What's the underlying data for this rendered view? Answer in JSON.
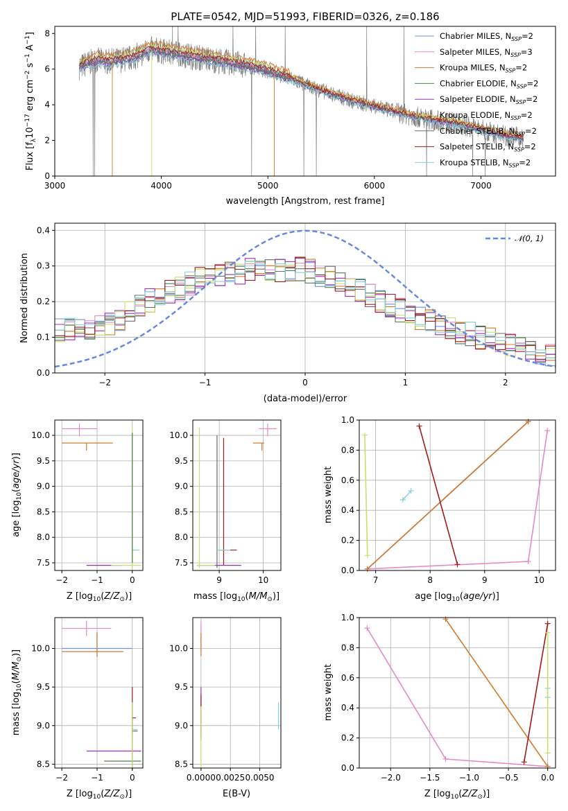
{
  "colors": {
    "chabrier_miles": "#6f8fdf",
    "salpeter_miles": "#e58ac4",
    "kroupa_miles": "#d2782b",
    "chabrier_elodie": "#4d7d4d",
    "salpeter_elodie": "#9c2fc0",
    "kroupa_elodie": "#c8e06a",
    "chabrier_stelib": "#6a6a6a",
    "salpeter_stelib": "#a11a1a",
    "kroupa_stelib": "#85d2d6",
    "gauss": "#6688dd",
    "data": "#808080"
  },
  "series_names": [
    "Chabrier MILES, N_SSP=2",
    "Salpeter MILES, N_SSP=3",
    "Kroupa MILES, N_SSP=2",
    "Chabrier ELODIE, N_SSP=2",
    "Salpeter ELODIE, N_SSP=2",
    "Kroupa ELODIE, N_SSP=2",
    "Chabrier STELIB, N_SSP=2",
    "Salpeter STELIB, N_SSP=2",
    "Kroupa STELIB, N_SSP=2"
  ],
  "legend_a": {
    "entries": [
      {
        "main": "Chabrier MILES, N",
        "sub": "SSP",
        "tail": "=2"
      },
      {
        "main": "Salpeter MILES, N",
        "sub": "SSP",
        "tail": "=3"
      },
      {
        "main": "Kroupa MILES, N",
        "sub": "SSP",
        "tail": "=2"
      },
      {
        "main": "Chabrier ELODIE, N",
        "sub": "SSP",
        "tail": "=2"
      },
      {
        "main": "Salpeter ELODIE, N",
        "sub": "SSP",
        "tail": "=2"
      },
      {
        "main": "Kroupa ELODIE, N",
        "sub": "SSP",
        "tail": "=2"
      },
      {
        "main": "Chabrier STELIB, N",
        "sub": "SSP",
        "tail": "=2"
      },
      {
        "main": "Salpeter STELIB, N",
        "sub": "SSP",
        "tail": "=2"
      },
      {
        "main": "Kroupa STELIB, N",
        "sub": "SSP",
        "tail": "=2"
      }
    ]
  },
  "chart_data": [
    {
      "type": "line",
      "title": "PLATE=0542, MJD=51993, FIBERID=0326, z=0.186",
      "xlabel": "wavelength [Angstrom, rest frame]",
      "ylabel": "Flux [f_λ 10^-17 erg cm^-2 s^-1 A^-1]",
      "xlim": [
        3000,
        7700
      ],
      "ylim": [
        0,
        8.4
      ],
      "xticks": [
        3000,
        4000,
        5000,
        6000,
        7000
      ],
      "yticks": [
        0,
        2,
        4,
        6,
        8
      ],
      "grid": false,
      "legend_position": "upper right",
      "data_color": "#808080",
      "model_envelope": {
        "x": [
          3230,
          3300,
          3400,
          3500,
          3600,
          3700,
          3800,
          3900,
          4000,
          4200,
          4400,
          4600,
          4800,
          5000,
          5200,
          5400,
          5600,
          5800,
          6000,
          6200,
          6400,
          6600,
          6800,
          7000,
          7200,
          7400
        ],
        "y": [
          6.1,
          6.3,
          6.5,
          6.4,
          6.5,
          6.6,
          6.8,
          7.1,
          7.0,
          6.8,
          6.6,
          6.4,
          6.2,
          5.9,
          5.5,
          5.0,
          4.6,
          4.2,
          3.9,
          3.6,
          3.3,
          3.1,
          2.9,
          2.6,
          2.3,
          2.1
        ]
      }
    },
    {
      "type": "line",
      "xlabel": "(data-model)/error",
      "ylabel": "Normed distribution",
      "xlim": [
        -2.5,
        2.5
      ],
      "ylim": [
        0,
        0.42
      ],
      "xticks": [
        -2,
        -1,
        0,
        1,
        2
      ],
      "yticks": [
        0.0,
        0.1,
        0.2,
        0.3,
        0.4
      ],
      "grid": true,
      "legend": "N(0,1)",
      "legend_position": "upper right",
      "histogram_envelope": {
        "x": [
          -2.5,
          -2.0,
          -1.5,
          -1.0,
          -0.5,
          0.0,
          0.5,
          1.0,
          1.5,
          2.0,
          2.5
        ],
        "y": [
          0.12,
          0.13,
          0.21,
          0.27,
          0.29,
          0.29,
          0.24,
          0.17,
          0.12,
          0.08,
          0.05
        ]
      }
    },
    {
      "type": "scatter",
      "xlabel": "Z [log10(Z/Z☉)]",
      "ylabel": "age [log10(age/yr)]",
      "xlim": [
        -2.2,
        0.3
      ],
      "ylim": [
        7.35,
        10.3
      ],
      "xticks": [
        -2,
        -1,
        0
      ],
      "yticks": [
        7.5,
        8.0,
        8.5,
        9.0,
        9.5,
        10.0
      ],
      "grid": true
    },
    {
      "type": "scatter",
      "xlabel": "mass [log10(M/M☉)]",
      "xlim": [
        8.4,
        10.4
      ],
      "ylim": [
        7.35,
        10.3
      ],
      "xticks": [
        9,
        10
      ],
      "yticks": [
        7.5,
        8.0,
        8.5,
        9.0,
        9.5,
        10.0
      ],
      "grid": true
    },
    {
      "type": "line",
      "xlabel": "age [log10(age/yr)]",
      "ylabel": "mass weight",
      "xlim": [
        6.7,
        10.3
      ],
      "ylim": [
        0,
        1
      ],
      "xticks": [
        7,
        8,
        9,
        10
      ],
      "yticks": [
        0.0,
        0.2,
        0.4,
        0.6,
        0.8,
        1.0
      ],
      "grid": true,
      "series": [
        {
          "name": "Chabrier MILES",
          "x": [
            6.85,
            9.8
          ],
          "y": [
            0.01,
            0.99
          ]
        },
        {
          "name": "Salpeter MILES",
          "x": [
            6.85,
            9.8,
            10.15
          ],
          "y": [
            0.01,
            0.06,
            0.93
          ]
        },
        {
          "name": "Kroupa MILES",
          "x": [
            6.85,
            9.8
          ],
          "y": [
            0.01,
            0.99
          ]
        },
        {
          "name": "Salpeter STELIB",
          "x": [
            7.8,
            8.5
          ],
          "y": [
            0.96,
            0.04
          ]
        },
        {
          "name": "Kroupa STELIB",
          "x": [
            7.5,
            7.65
          ],
          "y": [
            0.47,
            0.53
          ]
        },
        {
          "name": "Kroupa ELODIE",
          "x": [
            6.8,
            6.85
          ],
          "y": [
            0.9,
            0.1
          ]
        }
      ]
    },
    {
      "type": "scatter",
      "xlabel": "Z [log10(Z/Z☉)]",
      "ylabel": "mass [log10(M/M☉)]",
      "xlim": [
        -2.2,
        0.3
      ],
      "ylim": [
        8.45,
        10.4
      ],
      "xticks": [
        -2,
        -1,
        0
      ],
      "yticks": [
        8.5,
        9.0,
        9.5,
        10.0
      ],
      "grid": true
    },
    {
      "type": "scatter",
      "xlabel": "E(B-V)",
      "xlim": [
        -0.0007,
        0.0068
      ],
      "ylim": [
        8.45,
        10.4
      ],
      "xticks": [
        0.0,
        0.0025,
        0.005
      ],
      "xticklabels": [
        "0.0000",
        "0.0025",
        "0.0050"
      ],
      "yticks": [
        8.5,
        9.0,
        9.5,
        10.0
      ],
      "grid": true
    },
    {
      "type": "line",
      "xlabel": "Z [log10(Z/Z☉)]",
      "ylabel": "mass weight",
      "xlim": [
        -2.4,
        0.1
      ],
      "ylim": [
        0,
        1
      ],
      "xticks": [
        -2.0,
        -1.5,
        -1.0,
        -0.5,
        0.0
      ],
      "yticks": [
        0.0,
        0.2,
        0.4,
        0.6,
        0.8,
        1.0
      ],
      "grid": true,
      "series": [
        {
          "name": "Salpeter MILES",
          "x": [
            -2.3,
            -1.3,
            0.0
          ],
          "y": [
            0.93,
            0.06,
            0.01
          ]
        },
        {
          "name": "Kroupa MILES",
          "x": [
            -1.3,
            0.0
          ],
          "y": [
            0.99,
            0.01
          ]
        },
        {
          "name": "Salpeter STELIB",
          "x": [
            -0.3,
            0.0
          ],
          "y": [
            0.04,
            0.96
          ]
        },
        {
          "name": "Kroupa STELIB",
          "x": [
            0.0,
            0.0
          ],
          "y": [
            0.47,
            0.53
          ]
        },
        {
          "name": "Kroupa ELODIE",
          "x": [
            0.0,
            0.0
          ],
          "y": [
            0.9,
            0.1
          ]
        }
      ]
    }
  ]
}
